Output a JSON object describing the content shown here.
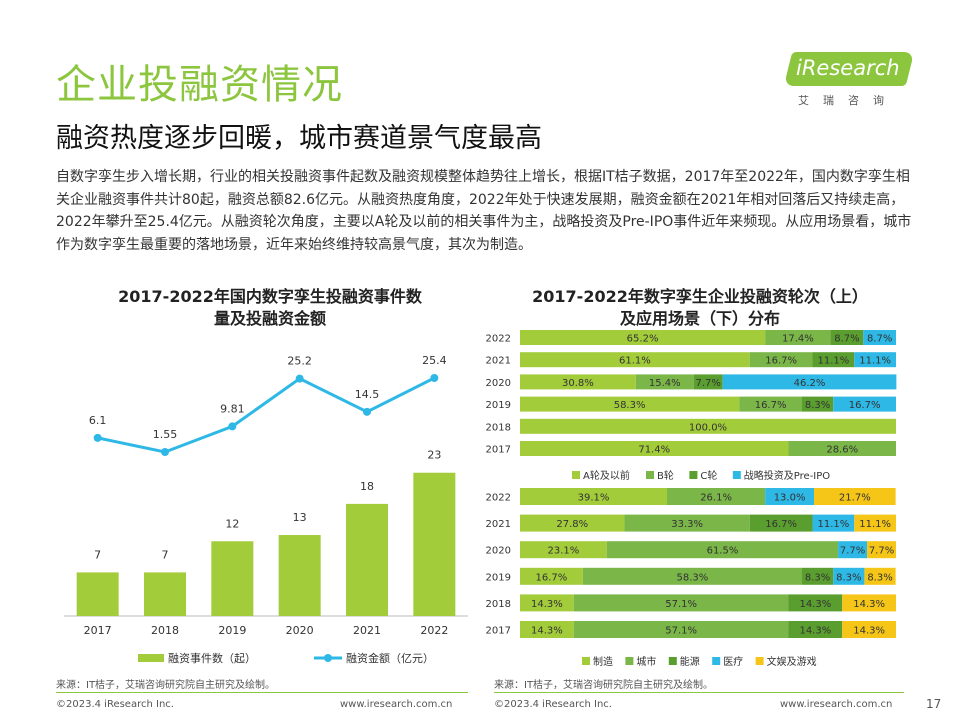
{
  "header": {
    "title": "企业投融资情况",
    "subtitle": "融资热度逐步回暖，城市赛道景气度最高",
    "logo_text": "iResearch",
    "logo_sub": "艾瑞咨询"
  },
  "intro": "自数字孪生步入增长期，行业的相关投融资事件起数及融资规模整体趋势往上增长，根据IT桔子数据，2017年至2022年，国内数字孪生相关企业融资事件共计80起，融资总额82.6亿元。从融资热度角度，2022年处于快速发展期，融资金额在2021年相对回落后又持续走高，2022年攀升至25.4亿元。从融资轮次角度，主要以A轮及以前的相关事件为主，战略投资及Pre-IPO事件近年来频现。从应用场景看，城市作为数字孪生最重要的落地场景，近年来始终维持较高景气度，其次为制造。",
  "left_chart": {
    "title_line1": "2017-2022年国内数字孪生投融资事件数",
    "title_line2": "量及投融资金额",
    "source": "来源：IT桔子，艾瑞咨询研究院自主研究及绘制。"
  },
  "right_chart": {
    "title_line1": "2017-2022年数字孪生企业投融资轮次（上）",
    "title_line2": "及应用场景（下）分布",
    "source": "来源：IT桔子，艾瑞咨询研究院自主研究及绘制。"
  },
  "footer": {
    "copyright_left": "©2023.4 iResearch Inc.",
    "url_left": "www.iresearch.com.cn",
    "copyright_right": "©2023.4 iResearch Inc.",
    "url_right": "www.iresearch.com.cn",
    "page_number": "17"
  },
  "colors": {
    "green_dark": "#5a9e2f",
    "green_mid": "#7ab648",
    "green_light": "#a3cc3b",
    "blue": "#2eb8e6",
    "yellow": "#f5c518",
    "accent": "#8cc63f"
  },
  "chart_data": [
    {
      "type": "bar",
      "categories": [
        "2017",
        "2018",
        "2019",
        "2020",
        "2021",
        "2022"
      ],
      "series": [
        {
          "name": "融资事件数（起）",
          "type": "bar",
          "values": [
            7,
            7,
            12,
            13,
            18,
            23
          ]
        },
        {
          "name": "融资金额（亿元）",
          "type": "line",
          "values": [
            6.1,
            1.55,
            9.81,
            25.2,
            14.5,
            25.4
          ]
        }
      ]
    },
    {
      "type": "bar",
      "stacked": true,
      "orientation": "horizontal",
      "categories": [
        "2022",
        "2021",
        "2020",
        "2019",
        "2018",
        "2017"
      ],
      "series": [
        {
          "name": "A轮及以前",
          "values": [
            65.2,
            61.1,
            30.8,
            58.3,
            100.0,
            71.4
          ],
          "labels": [
            "65.2%",
            "61.1%",
            "30.8%",
            "58.3%",
            "100.0%",
            "71.4%"
          ]
        },
        {
          "name": "B轮",
          "values": [
            17.4,
            16.7,
            15.4,
            16.7,
            0,
            28.6
          ],
          "labels": [
            "17.4%",
            "16.7%",
            "15.4%",
            "16.7%",
            "",
            "28.6%"
          ]
        },
        {
          "name": "C轮",
          "values": [
            8.7,
            11.1,
            7.7,
            8.3,
            0,
            0
          ],
          "labels": [
            "8.7%",
            "11.1%",
            "7.7%",
            "8.3%",
            "",
            ""
          ]
        },
        {
          "name": "战略投资及Pre-IPO",
          "values": [
            8.7,
            11.1,
            46.2,
            16.7,
            0,
            0
          ],
          "labels": [
            "8.7%",
            "11.1%",
            "46.2%",
            "16.7%",
            "",
            ""
          ]
        }
      ]
    },
    {
      "type": "bar",
      "stacked": true,
      "orientation": "horizontal",
      "categories": [
        "2022",
        "2021",
        "2020",
        "2019",
        "2018",
        "2017"
      ],
      "series": [
        {
          "name": "制造",
          "values": [
            39.1,
            27.8,
            23.1,
            16.7,
            14.3,
            14.3
          ],
          "labels": [
            "39.1%",
            "27.8%",
            "23.1%",
            "16.7%",
            "14.3%",
            "14.3%"
          ]
        },
        {
          "name": "城市",
          "values": [
            26.1,
            33.3,
            61.5,
            58.3,
            57.1,
            57.1
          ],
          "labels": [
            "26.1%",
            "33.3%",
            "61.5%",
            "58.3%",
            "57.1%",
            "57.1%"
          ]
        },
        {
          "name": "能源",
          "values": [
            0,
            16.7,
            0,
            8.3,
            14.3,
            14.3
          ],
          "labels": [
            "",
            "16.7%",
            "",
            "8.3%",
            "14.3%",
            "14.3%"
          ]
        },
        {
          "name": "医疗",
          "values": [
            13.0,
            11.1,
            7.7,
            8.3,
            0,
            0
          ],
          "labels": [
            "13.0%",
            "11.1%",
            "7.7%",
            "8.3%",
            "",
            ""
          ]
        },
        {
          "name": "文娱及游戏",
          "values": [
            21.7,
            11.1,
            7.7,
            8.3,
            14.3,
            14.3
          ],
          "labels": [
            "21.7%",
            "11.1%",
            "7.7%",
            "8.3%",
            "14.3%",
            "14.3%"
          ]
        }
      ]
    }
  ]
}
